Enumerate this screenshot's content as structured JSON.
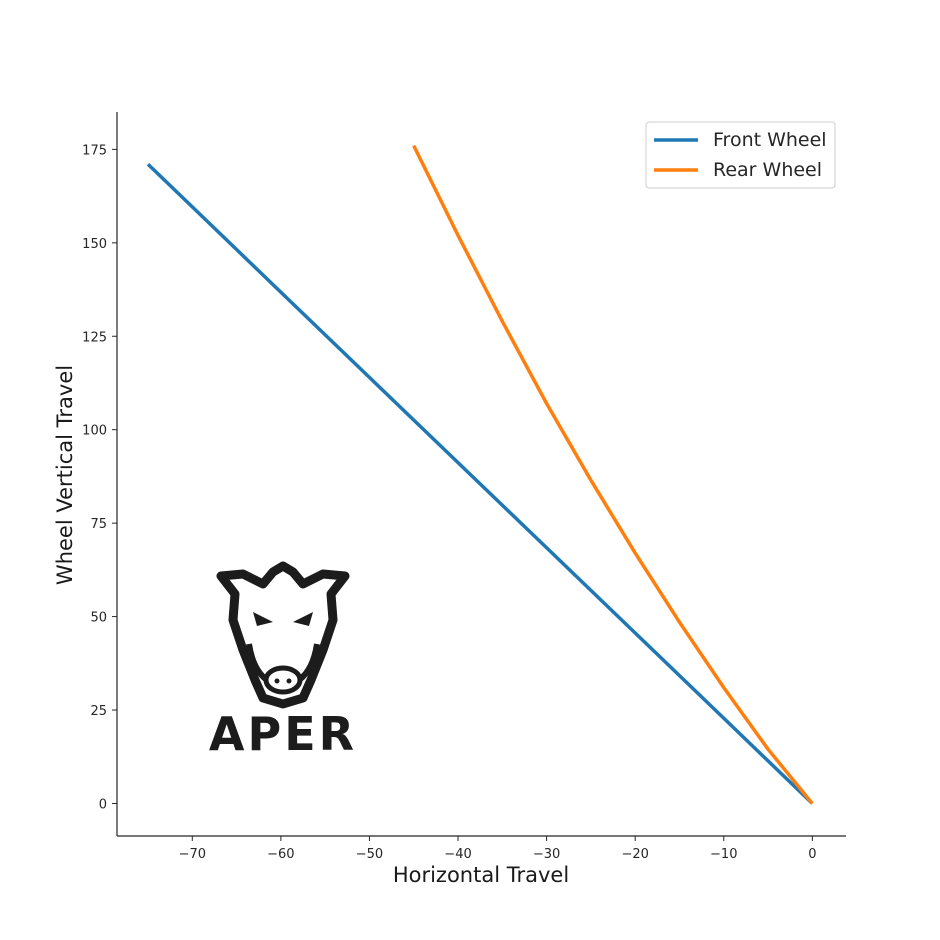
{
  "chart_data": {
    "type": "line",
    "title": "",
    "xlabel": "Horizontal Travel",
    "ylabel": "Wheel Vertical Travel",
    "xlim": [
      -78.5,
      3.8
    ],
    "ylim": [
      -8.7,
      185
    ],
    "x_ticks": [
      -70,
      -60,
      -50,
      -40,
      -30,
      -20,
      -10,
      0
    ],
    "y_ticks": [
      0,
      25,
      50,
      75,
      100,
      125,
      150,
      175
    ],
    "grid": false,
    "legend_position": "top-right",
    "series": [
      {
        "name": "Front Wheel",
        "color": "#1f77b4",
        "x": [
          0,
          -10,
          -20,
          -30,
          -40,
          -50,
          -60,
          -70,
          -75
        ],
        "y": [
          0,
          22.8,
          45.6,
          68.4,
          91.2,
          114,
          136.8,
          159.6,
          171
        ]
      },
      {
        "name": "Rear Wheel",
        "color": "#ff7f0e",
        "x": [
          0,
          -5,
          -10,
          -15,
          -20,
          -25,
          -30,
          -35,
          -40,
          -45
        ],
        "y": [
          0,
          14.5,
          31,
          48.5,
          67,
          86.5,
          107,
          129,
          152,
          176
        ]
      }
    ]
  },
  "logo": {
    "text": "APER"
  }
}
